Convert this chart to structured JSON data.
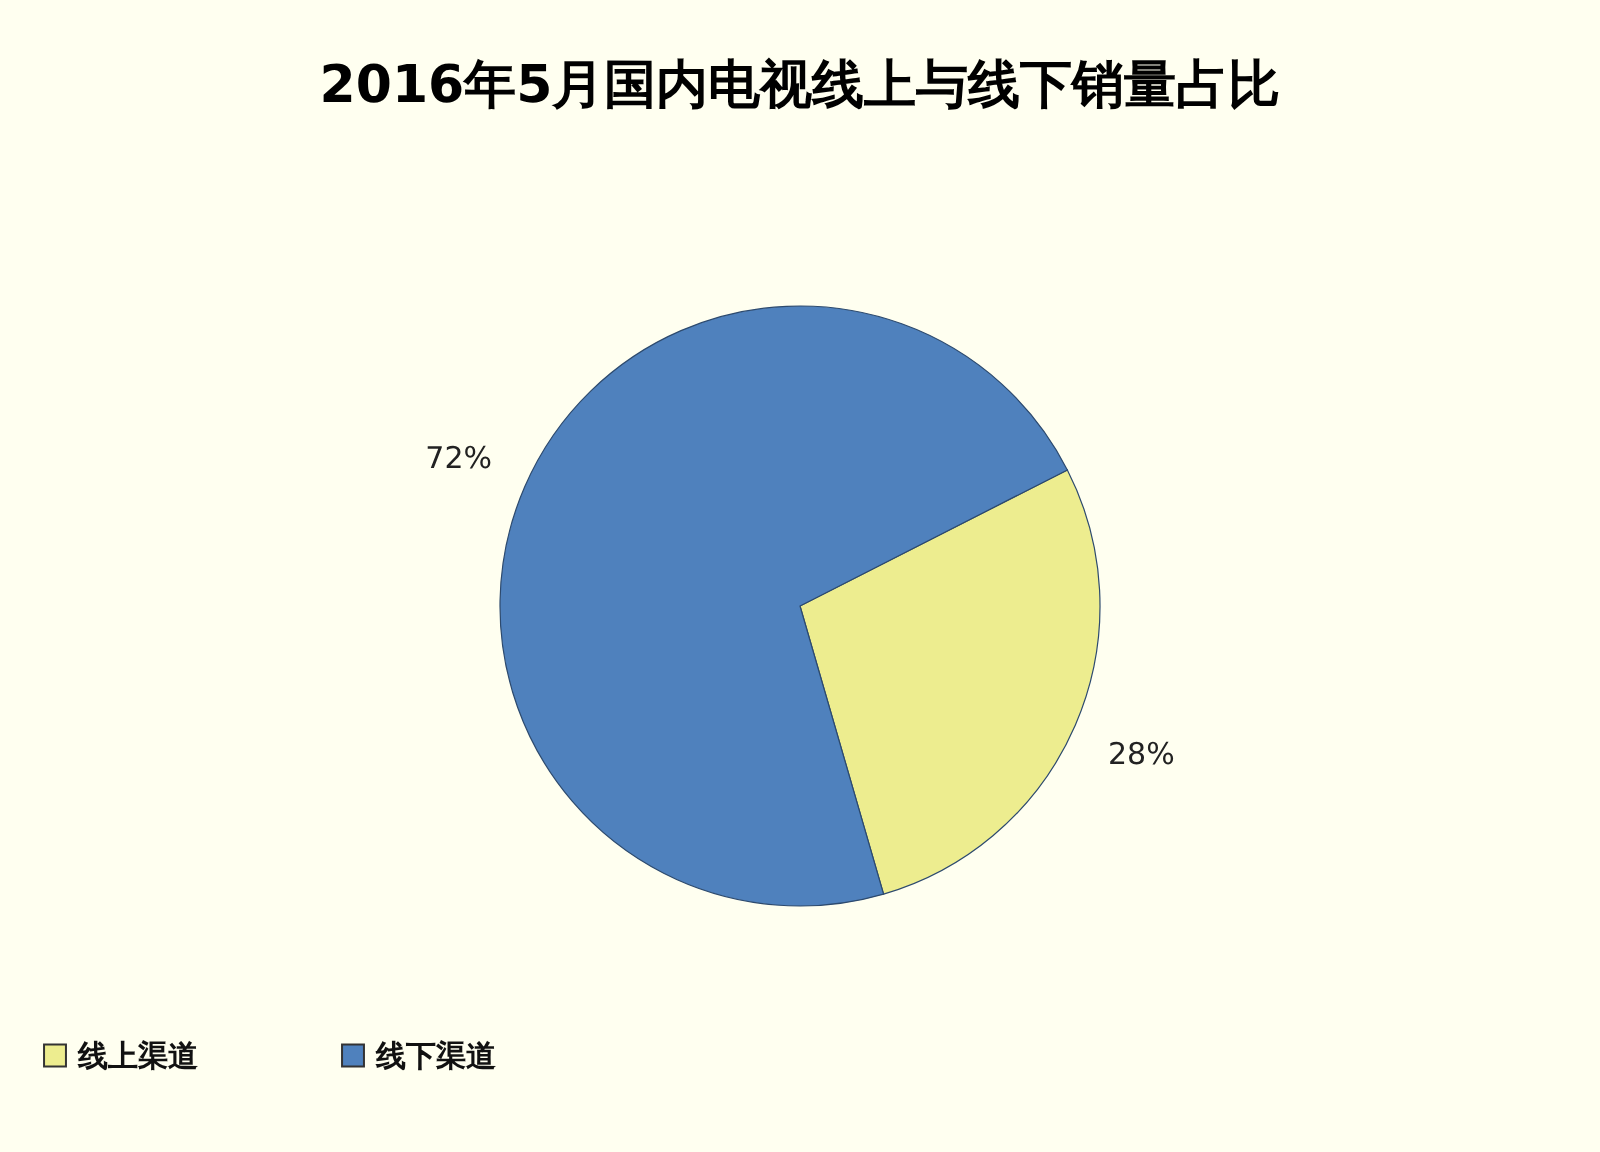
{
  "chart_data": {
    "type": "pie",
    "title": "2016年5月国内电视线上与线下销量占比",
    "categories": [
      "线上渠道",
      "线下渠道"
    ],
    "values": [
      28,
      72
    ],
    "colors": [
      "#eded8f",
      "#4f81bd"
    ],
    "value_labels": [
      "28%",
      "72%"
    ],
    "legend": "bottom"
  }
}
